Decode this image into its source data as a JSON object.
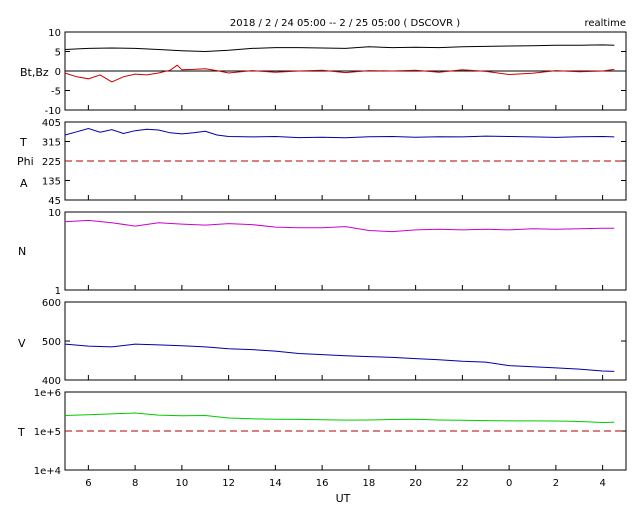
{
  "header": {
    "title": "2018 / 2 / 24   05:00 --  2 / 25  05:00 ( DSCOVR )",
    "mode": "realtime"
  },
  "xaxis": {
    "label": "UT",
    "ticks": [
      "6",
      "8",
      "10",
      "12",
      "14",
      "16",
      "18",
      "20",
      "22",
      "0",
      "2",
      "4"
    ],
    "tick_hours": [
      6,
      8,
      10,
      12,
      14,
      16,
      18,
      20,
      22,
      24,
      26,
      28
    ],
    "range_hours": [
      5,
      29
    ]
  },
  "panels": {
    "btbz": {
      "label": "Bt,Bz",
      "ticks": [
        "10",
        "5",
        "0",
        "-5",
        "-10"
      ]
    },
    "tphi": {
      "label_t": "T",
      "label_phi": "Phi",
      "label_a": "A",
      "ticks": [
        "405",
        "315",
        "225",
        "135",
        "45"
      ]
    },
    "dens": {
      "label": "N",
      "ticks": [
        "10",
        "1"
      ]
    },
    "vel": {
      "label": "V",
      "ticks": [
        "600",
        "500",
        "400"
      ]
    },
    "temp": {
      "label": "T",
      "ticks": [
        "1e+6",
        "1e+5",
        "1e+4"
      ]
    }
  },
  "chart_data": [
    {
      "type": "line",
      "ylabel": "Bt,Bz",
      "ylim": [
        -10,
        10
      ],
      "reference_line": 0,
      "series": [
        {
          "name": "Bt",
          "color": "#000000",
          "x": [
            5.0,
            6.0,
            7.0,
            8.0,
            9.0,
            10.0,
            11.0,
            12.0,
            13.0,
            14.0,
            15.0,
            16.0,
            17.0,
            18.0,
            19.0,
            20.0,
            21.0,
            22.0,
            23.0,
            24.0,
            25.0,
            26.0,
            27.0,
            28.0,
            28.5
          ],
          "y": [
            5.5,
            5.8,
            5.9,
            5.8,
            5.5,
            5.2,
            5.0,
            5.3,
            5.8,
            6.0,
            6.0,
            5.9,
            5.8,
            6.2,
            6.0,
            6.1,
            6.0,
            6.2,
            6.3,
            6.4,
            6.5,
            6.6,
            6.6,
            6.7,
            6.6
          ]
        },
        {
          "name": "Bz",
          "color": "#cc0000",
          "x": [
            5.0,
            5.5,
            6.0,
            6.5,
            7.0,
            7.5,
            8.0,
            8.5,
            9.0,
            9.5,
            9.8,
            10.0,
            10.5,
            11.0,
            11.5,
            12.0,
            13.0,
            14.0,
            15.0,
            16.0,
            17.0,
            18.0,
            19.0,
            20.0,
            21.0,
            22.0,
            23.0,
            24.0,
            25.0,
            26.0,
            27.0,
            28.0,
            28.5
          ],
          "y": [
            -0.5,
            -1.5,
            -2.0,
            -1.0,
            -2.8,
            -1.5,
            -0.8,
            -1.0,
            -0.5,
            0.2,
            1.5,
            0.3,
            0.4,
            0.6,
            0.1,
            -0.5,
            0.1,
            -0.3,
            0.0,
            0.2,
            -0.4,
            0.1,
            0.0,
            0.2,
            -0.3,
            0.3,
            -0.1,
            -0.9,
            -0.6,
            0.1,
            -0.2,
            0.0,
            0.4
          ]
        }
      ]
    },
    {
      "type": "line",
      "ylabel": "T / Phi",
      "ylim": [
        45,
        405
      ],
      "reference_line": 225,
      "series": [
        {
          "name": "Phi",
          "color": "#0000aa",
          "x": [
            5.0,
            5.5,
            6.0,
            6.5,
            7.0,
            7.5,
            8.0,
            8.5,
            9.0,
            9.5,
            10.0,
            10.5,
            11.0,
            11.5,
            12.0,
            13.0,
            14.0,
            15.0,
            16.0,
            17.0,
            18.0,
            19.0,
            20.0,
            21.0,
            22.0,
            23.0,
            24.0,
            25.0,
            26.0,
            27.0,
            28.0,
            28.5
          ],
          "y": [
            345,
            360,
            375,
            358,
            370,
            352,
            365,
            372,
            368,
            355,
            350,
            355,
            362,
            345,
            338,
            336,
            338,
            333,
            335,
            332,
            337,
            338,
            335,
            337,
            336,
            340,
            338,
            336,
            334,
            337,
            338,
            336
          ]
        }
      ]
    },
    {
      "type": "line",
      "ylabel": "N",
      "scale": "log",
      "ylim": [
        1,
        10
      ],
      "series": [
        {
          "name": "N",
          "color": "#cc00cc",
          "x": [
            5.0,
            6.0,
            7.0,
            8.0,
            9.0,
            10.0,
            11.0,
            12.0,
            13.0,
            14.0,
            15.0,
            16.0,
            17.0,
            18.0,
            19.0,
            20.0,
            21.0,
            22.0,
            23.0,
            24.0,
            25.0,
            26.0,
            27.0,
            28.0,
            28.5
          ],
          "y": [
            7.5,
            7.8,
            7.3,
            6.6,
            7.3,
            7.0,
            6.8,
            7.1,
            6.9,
            6.4,
            6.3,
            6.3,
            6.5,
            5.8,
            5.6,
            5.9,
            6.0,
            5.9,
            6.0,
            5.9,
            6.1,
            6.0,
            6.1,
            6.2,
            6.2
          ]
        }
      ]
    },
    {
      "type": "line",
      "ylabel": "V",
      "ylim": [
        400,
        600
      ],
      "series": [
        {
          "name": "V",
          "color": "#0000aa",
          "x": [
            5.0,
            6.0,
            7.0,
            8.0,
            9.0,
            10.0,
            11.0,
            12.0,
            13.0,
            14.0,
            15.0,
            16.0,
            17.0,
            18.0,
            19.0,
            20.0,
            21.0,
            22.0,
            23.0,
            24.0,
            25.0,
            26.0,
            27.0,
            28.0,
            28.5
          ],
          "y": [
            492,
            487,
            485,
            492,
            490,
            488,
            485,
            480,
            478,
            474,
            468,
            465,
            462,
            460,
            458,
            455,
            452,
            448,
            446,
            437,
            434,
            431,
            428,
            423,
            422
          ]
        }
      ]
    },
    {
      "type": "line",
      "ylabel": "T",
      "scale": "log",
      "ylim": [
        10000,
        1000000
      ],
      "reference_line": 100000,
      "series": [
        {
          "name": "T",
          "color": "#00cc00",
          "x": [
            5.0,
            6.0,
            7.0,
            8.0,
            9.0,
            10.0,
            11.0,
            12.0,
            13.0,
            14.0,
            15.0,
            16.0,
            17.0,
            18.0,
            19.0,
            20.0,
            21.0,
            22.0,
            23.0,
            24.0,
            25.0,
            26.0,
            27.0,
            28.0,
            28.5
          ],
          "y": [
            250000,
            262000,
            275000,
            290000,
            255000,
            245000,
            250000,
            215000,
            205000,
            200000,
            198000,
            195000,
            190000,
            192000,
            197000,
            200000,
            192000,
            188000,
            185000,
            182000,
            182000,
            180000,
            175000,
            165000,
            168000
          ]
        }
      ]
    }
  ]
}
